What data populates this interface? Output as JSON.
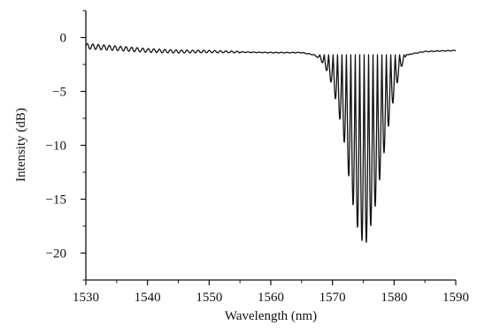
{
  "chart_data": {
    "type": "line",
    "title": "",
    "xlabel": "Wavelength (nm)",
    "ylabel": "Intensity (dB)",
    "xlim": [
      1530,
      1590
    ],
    "ylim": [
      -22.5,
      2.5
    ],
    "x_ticks": [
      1530,
      1540,
      1550,
      1560,
      1570,
      1580,
      1590
    ],
    "y_ticks": [
      0,
      -5,
      -10,
      -15,
      -20
    ],
    "x_tick_labels": [
      "1530",
      "1540",
      "1550",
      "1560",
      "1570",
      "1580",
      "1590"
    ],
    "y_tick_labels": [
      "0",
      "−5",
      "−10",
      "−15",
      "−20"
    ],
    "grid": false,
    "legend": "none",
    "line_color": "#111111",
    "series": [
      {
        "x": [
          1530,
          1535,
          1540,
          1545,
          1550,
          1555,
          1560,
          1565,
          1567,
          1568,
          1569,
          1570,
          1571,
          1572,
          1573,
          1574,
          1575,
          1575.5,
          1576,
          1577,
          1578,
          1579,
          1580,
          1581,
          1582,
          1585,
          1590
        ],
        "y": [
          -0.8,
          -1.0,
          -1.2,
          -1.3,
          -1.3,
          -1.35,
          -1.4,
          -1.4,
          -1.6,
          -2.0,
          -3.0,
          -4.5,
          -7.0,
          -10.0,
          -14.5,
          -17.5,
          -19.2,
          -19.0,
          -18.0,
          -15.5,
          -12.0,
          -8.5,
          -5.5,
          -3.0,
          -1.6,
          -1.3,
          -1.2
        ],
        "description_omitted": true
      }
    ]
  }
}
